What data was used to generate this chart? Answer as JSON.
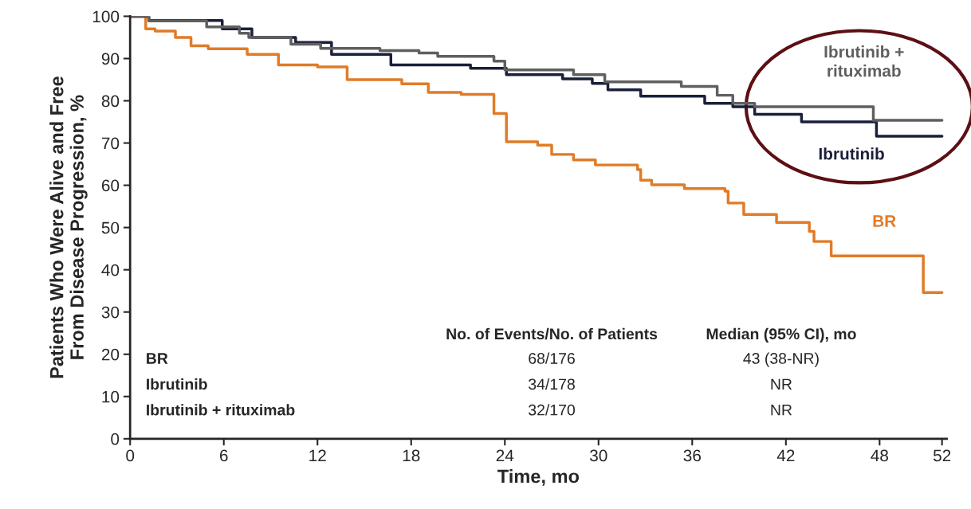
{
  "chart_data": {
    "type": "step",
    "xlabel": "Time, mo",
    "ylabel": "Patients Who Were Alive and Free\nFrom Disease Progression, %",
    "xlim": [
      0,
      52.3
    ],
    "ylim": [
      0,
      100
    ],
    "xticks": [
      0,
      6,
      12,
      18,
      24,
      30,
      36,
      42,
      48,
      52
    ],
    "yticks": [
      0,
      10,
      20,
      30,
      40,
      50,
      60,
      70,
      80,
      90,
      100
    ],
    "grid": false,
    "legend": false,
    "line_style": "solid",
    "series": [
      {
        "name": "BR",
        "color": "#e07b28",
        "x": [
          0,
          1.0,
          1.6,
          2.9,
          3.9,
          5.0,
          7.5,
          9.5,
          12.0,
          13.9,
          17.4,
          19.1,
          21.2,
          23.3,
          24.1,
          26.1,
          27.0,
          28.4,
          29.8,
          32.5,
          32.7,
          33.4,
          35.5,
          38.1,
          38.3,
          39.3,
          41.4,
          43.5,
          43.8,
          44.9,
          50.8,
          52.0
        ],
        "values": [
          100,
          97,
          96.5,
          95,
          93,
          92.3,
          91,
          88.5,
          88,
          85,
          84,
          82,
          81.5,
          77,
          70.3,
          69.5,
          67.3,
          66,
          64.8,
          63.7,
          61.2,
          60.1,
          59.2,
          58.6,
          55.8,
          53.1,
          51.2,
          49.1,
          46.7,
          43.3,
          34.6,
          34.6
        ]
      },
      {
        "name": "Ibrutinib",
        "color": "#1a1f3a",
        "x": [
          0,
          1.2,
          5.9,
          7.8,
          10.6,
          12.9,
          16.7,
          21.8,
          24.1,
          27.7,
          29.6,
          30.6,
          32.7,
          36.8,
          38.6,
          40.0,
          43.0,
          47.8,
          52.0
        ],
        "values": [
          100,
          99,
          97,
          95,
          93.8,
          91,
          88.5,
          87.7,
          86.2,
          85.2,
          84.1,
          82.6,
          81.1,
          79.4,
          78.6,
          76.8,
          75.0,
          71.6,
          71.6
        ]
      },
      {
        "name": "Ibrutinib +\nrituximab",
        "color": "#5f5f5f",
        "x": [
          0,
          1.2,
          4.9,
          7.0,
          7.6,
          10.3,
          12.2,
          16.0,
          18.5,
          19.7,
          23.3,
          24.0,
          28.4,
          30.4,
          35.3,
          37.6,
          38.6,
          40.0,
          47.6,
          52.0
        ],
        "values": [
          100,
          98.9,
          97.5,
          96,
          95,
          93.4,
          92.4,
          91.9,
          91.3,
          90.5,
          89.4,
          87.3,
          86.2,
          84.5,
          83.4,
          81.3,
          79.4,
          78.6,
          75.4,
          75.4
        ]
      }
    ],
    "annotations": [
      "No. of Events/No. of Patients",
      "Median (95% CI), mo",
      "BR",
      "68/176",
      "43 (38-NR)",
      "Ibrutinib",
      "34/178",
      "NR",
      "Ibrutinib + rituximab",
      "32/170",
      "NR"
    ]
  }
}
